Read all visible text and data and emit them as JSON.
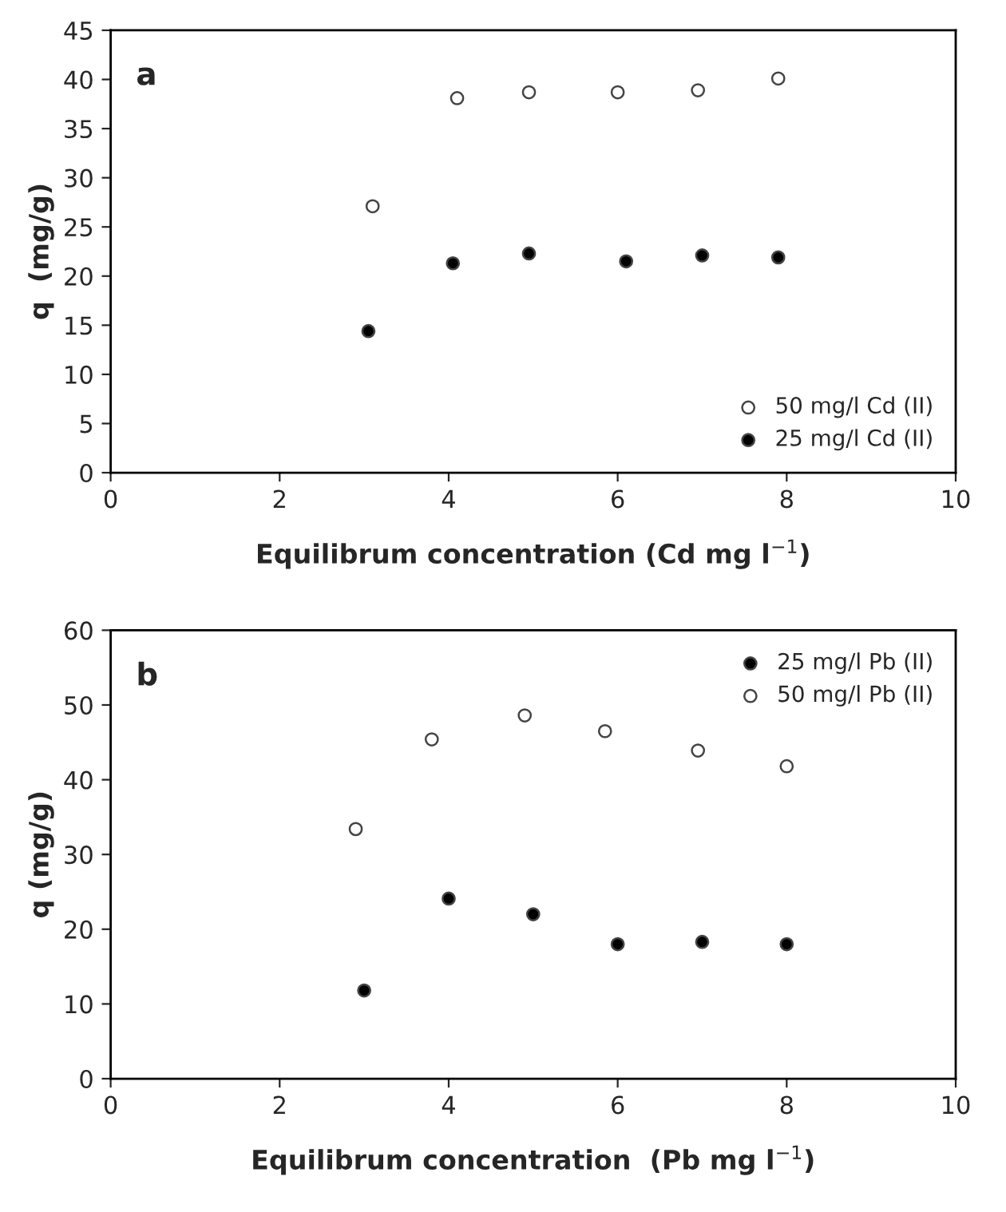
{
  "chart_data": [
    {
      "type": "scatter",
      "xlabel": "Equilibrum concentration (Cd mg l$^{−1}$)",
      "ylabel": "q  (mg/g)",
      "annotations": [
        "a"
      ],
      "xlim": [
        0,
        10
      ],
      "ylim": [
        0,
        45
      ],
      "xticks": [
        0,
        2,
        4,
        6,
        8,
        10
      ],
      "yticks": [
        0,
        5,
        10,
        15,
        20,
        25,
        30,
        35,
        40,
        45
      ],
      "grid": false,
      "legend": "bottom right",
      "marker": "circle",
      "series": [
        {
          "name": "50 mg/l Cd (II)",
          "color": "#ffffff",
          "x": [
            3.1,
            4.1,
            4.95,
            6.0,
            6.95,
            7.9
          ],
          "values": [
            27.1,
            38.1,
            38.7,
            38.7,
            38.9,
            40.1
          ]
        },
        {
          "name": "25 mg/l Cd (II)",
          "color": "#000000",
          "x": [
            3.05,
            4.05,
            4.95,
            6.1,
            7.0,
            7.9
          ],
          "values": [
            14.4,
            21.3,
            22.3,
            21.5,
            22.1,
            21.9
          ]
        }
      ]
    },
    {
      "type": "scatter",
      "xlabel": "Equilibrum concentration  (Pb mg l$^{−1}$)",
      "ylabel": "q (mg/g)",
      "annotations": [
        "b"
      ],
      "xlim": [
        0,
        10
      ],
      "ylim": [
        0,
        60
      ],
      "xticks": [
        0,
        2,
        4,
        6,
        8,
        10
      ],
      "yticks": [
        0,
        10,
        20,
        30,
        40,
        50,
        60
      ],
      "grid": false,
      "legend": "top right",
      "marker": "circle",
      "series": [
        {
          "name": "25 mg/l Pb (II)",
          "color": "#000000",
          "x": [
            3,
            4,
            5,
            6,
            7,
            8
          ],
          "values": [
            11.8,
            24.1,
            22.0,
            18.0,
            18.3,
            18.0
          ]
        },
        {
          "name": "50 mg/l Pb (II)",
          "color": "#ffffff",
          "x": [
            2.9,
            3.8,
            4.9,
            5.85,
            6.95,
            8.0
          ],
          "values": [
            33.4,
            45.4,
            48.6,
            46.5,
            43.9,
            41.8
          ]
        }
      ]
    }
  ]
}
